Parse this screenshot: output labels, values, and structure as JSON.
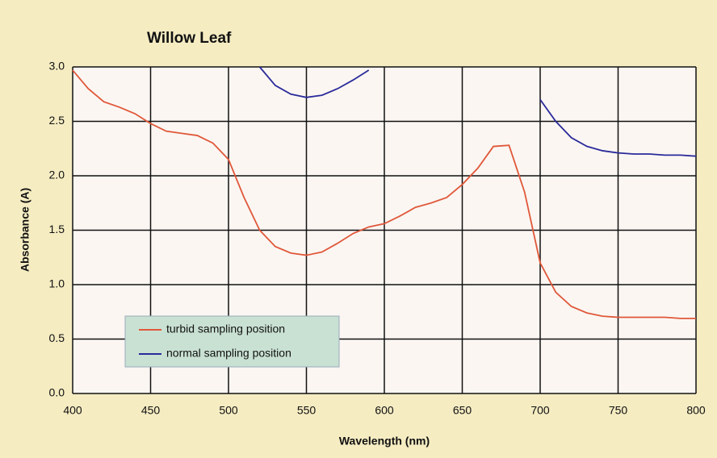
{
  "chart_data": {
    "type": "line",
    "title": "Willow Leaf",
    "x_label": "Wavelength (nm)",
    "y_label": "Absorbance (A)",
    "x": [
      400,
      410,
      420,
      430,
      440,
      450,
      460,
      470,
      480,
      490,
      500,
      510,
      520,
      530,
      540,
      550,
      560,
      570,
      580,
      590,
      600,
      610,
      620,
      630,
      640,
      650,
      660,
      670,
      680,
      690,
      700,
      710,
      720,
      730,
      740,
      750,
      760,
      770,
      780,
      790,
      800
    ],
    "series": [
      {
        "name": "turbid sampling position",
        "color": "#e0583a",
        "values": [
          2.97,
          2.8,
          2.68,
          2.63,
          2.57,
          2.48,
          2.41,
          2.39,
          2.37,
          2.3,
          2.15,
          1.8,
          1.5,
          1.35,
          1.29,
          1.27,
          1.3,
          1.38,
          1.47,
          1.53,
          1.56,
          1.63,
          1.71,
          1.75,
          1.8,
          1.92,
          2.07,
          2.27,
          2.28,
          1.85,
          1.2,
          0.93,
          0.8,
          0.74,
          0.71,
          0.7,
          0.7,
          0.7,
          0.7,
          0.69,
          0.69
        ]
      },
      {
        "name": "normal sampling position",
        "color": "#2a2a9a",
        "values": [
          null,
          null,
          null,
          null,
          null,
          null,
          null,
          null,
          null,
          null,
          null,
          null,
          3.0,
          2.83,
          2.75,
          2.72,
          2.74,
          2.8,
          2.88,
          2.97,
          null,
          null,
          null,
          null,
          null,
          null,
          null,
          null,
          null,
          null,
          2.7,
          2.5,
          2.35,
          2.27,
          2.23,
          2.21,
          2.2,
          2.2,
          2.19,
          2.19,
          2.18
        ]
      }
    ],
    "xlim": [
      400,
      800
    ],
    "xticks": [
      400,
      450,
      500,
      550,
      600,
      650,
      700,
      750,
      800
    ],
    "ylim": [
      0,
      3
    ],
    "yticks": [
      {
        "value": 0,
        "label": "0.0"
      },
      {
        "value": 0.5,
        "label": "0.5"
      },
      {
        "value": 1,
        "label": "1.0"
      },
      {
        "value": 1.5,
        "label": "1.5"
      },
      {
        "value": 2,
        "label": "2.0"
      },
      {
        "value": 2.5,
        "label": "2.5"
      },
      {
        "value": 3,
        "label": "3.0"
      }
    ],
    "grid": true,
    "legend": "lower left"
  }
}
